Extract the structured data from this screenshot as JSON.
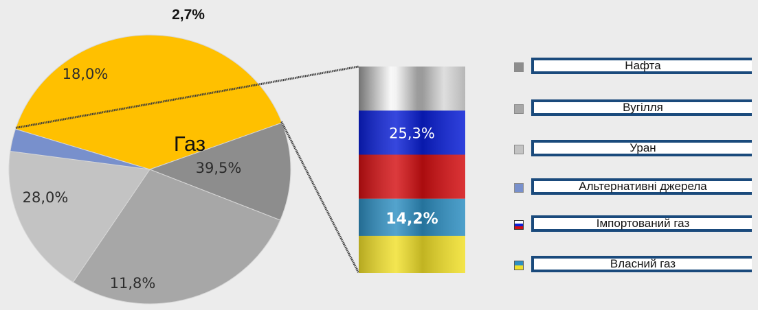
{
  "chart_data": {
    "type": "pie",
    "slices": [
      {
        "label": "Газ",
        "value": 39.5,
        "text": "39,5%",
        "color": "#ffc000"
      },
      {
        "label": "Нафта",
        "value": 11.8,
        "text": "11,8%",
        "color": "#8d8d8d"
      },
      {
        "label": "Вугілля",
        "value": 28.0,
        "text": "28,0%",
        "color": "#a7a7a7"
      },
      {
        "label": "Уран",
        "value": 18.0,
        "text": "18,0%",
        "color": "#c3c3c3"
      },
      {
        "label": "Альтернативні джерела",
        "value": 2.7,
        "text": "2,7%",
        "color": "#7890cc"
      }
    ],
    "center_label": "Газ",
    "gas_breakdown": [
      {
        "label": "Імпортований газ",
        "value": 25.3,
        "text": "25,3%"
      },
      {
        "label": "Власний газ",
        "value": 14.2,
        "text": "14,2%"
      }
    ]
  },
  "legend": [
    {
      "label": "Нафта",
      "swatch": "#8d8d8d"
    },
    {
      "label": "Вугілля",
      "swatch": "#a7a7a7"
    },
    {
      "label": "Уран",
      "swatch": "#c3c3c3"
    },
    {
      "label": "Альтернативні джерела",
      "swatch": "#7890cc"
    },
    {
      "label": "Імпортований газ",
      "swatch": "flag-russia"
    },
    {
      "label": "Власний газ",
      "swatch": "flag-ukraine"
    }
  ]
}
